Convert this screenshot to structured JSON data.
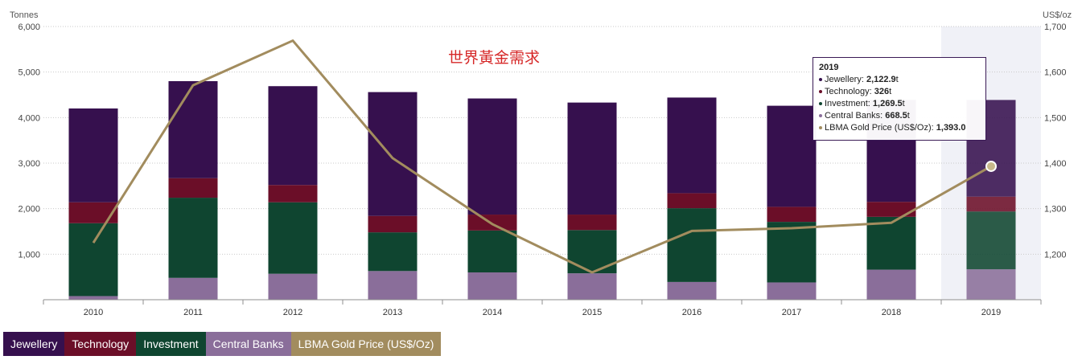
{
  "chart_data": {
    "type": "bar",
    "stacked": true,
    "title": "世界黃金需求",
    "ylabel_left": "Tonnes",
    "ylabel_right": "US$/oz",
    "categories": [
      "2010",
      "2011",
      "2012",
      "2013",
      "2014",
      "2015",
      "2016",
      "2017",
      "2018",
      "2019"
    ],
    "ylim_left": [
      0,
      6000
    ],
    "ylim_right": [
      1100,
      1700
    ],
    "yticks_left": [
      "6,000",
      "5,000",
      "4,000",
      "3,000",
      "2,000",
      "1,000"
    ],
    "yticks_right": [
      "1,700",
      "1,600",
      "1,500",
      "1,400",
      "1,300",
      "1,200"
    ],
    "series": [
      {
        "name": "Central Banks",
        "color": "#8a6e9a",
        "values": [
          80,
          480,
          570,
          630,
          600,
          580,
          390,
          380,
          660,
          668.5
        ]
      },
      {
        "name": "Investment",
        "color": "#0f4530",
        "values": [
          1600,
          1760,
          1570,
          850,
          920,
          950,
          1620,
          1330,
          1160,
          1269.5
        ]
      },
      {
        "name": "Technology",
        "color": "#6b0e28",
        "values": [
          460,
          430,
          380,
          360,
          350,
          340,
          330,
          330,
          330,
          326
        ]
      },
      {
        "name": "Jewellery",
        "color": "#36104e",
        "values": [
          2060,
          2130,
          2170,
          2720,
          2550,
          2460,
          2100,
          2220,
          2240,
          2122.9
        ]
      }
    ],
    "line": {
      "name": "LBMA Gold Price (US$/Oz)",
      "color": "#a28c5e",
      "values": [
        1225,
        1571,
        1669,
        1411,
        1266,
        1160,
        1251,
        1257,
        1269,
        1393.0
      ]
    },
    "highlight_index": 9,
    "grid": true,
    "legend_position": "bottom-left"
  },
  "legend": [
    {
      "label": "Jewellery",
      "color": "#36104e"
    },
    {
      "label": "Technology",
      "color": "#6b0e28"
    },
    {
      "label": "Investment",
      "color": "#0f4530"
    },
    {
      "label": "Central Banks",
      "color": "#8a6e9a"
    },
    {
      "label": "LBMA Gold Price (US$/Oz)",
      "color": "#a28c5e"
    }
  ],
  "tooltip": {
    "title": "2019",
    "rows": [
      {
        "label": "Jewellery: ",
        "value": "2,122.9",
        "unit": "t",
        "color": "#36104e"
      },
      {
        "label": "Technology: ",
        "value": "326",
        "unit": "t",
        "color": "#6b0e28"
      },
      {
        "label": "Investment: ",
        "value": "1,269.5",
        "unit": "t",
        "color": "#0f4530"
      },
      {
        "label": "Central Banks: ",
        "value": "668.5",
        "unit": "t",
        "color": "#8a6e9a"
      },
      {
        "label": "LBMA Gold Price (US$/Oz): ",
        "value": "1,393.0",
        "unit": "",
        "color": "#a28c5e"
      }
    ]
  }
}
